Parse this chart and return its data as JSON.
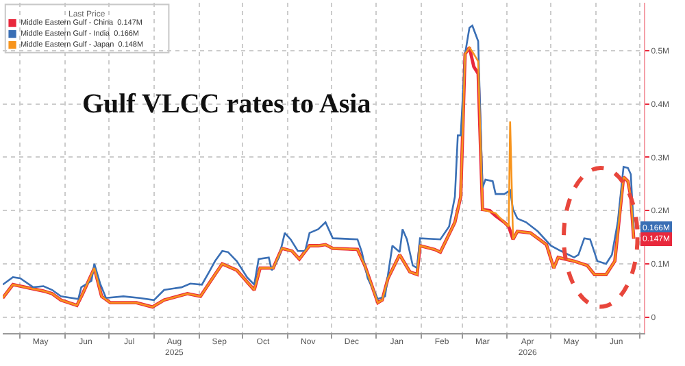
{
  "chart_data": {
    "type": "line",
    "title": "Gulf VLCC rates to Asia",
    "legend_title": "Last Price",
    "legend": "top left",
    "grid": true,
    "marker": "none",
    "line_style": "solid",
    "xlim": [
      "2025-04-19",
      "2026-07-04"
    ],
    "xticks": [
      {
        "value": "2025-05-01",
        "label": null
      },
      {
        "value": "2025-05-15",
        "label": "May"
      },
      {
        "value": "2025-06-01",
        "label": null
      },
      {
        "value": "2025-06-15",
        "label": "Jun"
      },
      {
        "value": "2025-07-01",
        "label": null
      },
      {
        "value": "2025-07-15",
        "label": "Jul"
      },
      {
        "value": "2025-08-01",
        "label": null
      },
      {
        "value": "2025-08-15",
        "label": "Aug\n2025"
      },
      {
        "value": "2025-09-01",
        "label": null
      },
      {
        "value": "2025-09-15",
        "label": "Sep"
      },
      {
        "value": "2025-10-01",
        "label": null
      },
      {
        "value": "2025-10-15",
        "label": "Oct"
      },
      {
        "value": "2025-11-01",
        "label": null
      },
      {
        "value": "2025-11-15",
        "label": "Nov"
      },
      {
        "value": "2025-12-01",
        "label": null
      },
      {
        "value": "2025-12-15",
        "label": "Dec"
      },
      {
        "value": "2026-01-01",
        "label": null
      },
      {
        "value": "2026-01-15",
        "label": "Jan"
      },
      {
        "value": "2026-02-01",
        "label": null
      },
      {
        "value": "2026-02-15",
        "label": "Feb"
      },
      {
        "value": "2026-03-01",
        "label": null
      },
      {
        "value": "2026-03-15",
        "label": "Mar"
      },
      {
        "value": "2026-04-01",
        "label": null
      },
      {
        "value": "2026-04-15",
        "label": "Apr\n2026"
      },
      {
        "value": "2026-05-01",
        "label": null
      },
      {
        "value": "2026-05-15",
        "label": "May"
      },
      {
        "value": "2026-06-01",
        "label": null
      },
      {
        "value": "2026-06-15",
        "label": "Jun"
      },
      {
        "value": "2026-07-01",
        "label": null
      }
    ],
    "ylim": [
      -0.03,
      0.59
    ],
    "yticks": [
      {
        "value": 0,
        "label": "0"
      },
      {
        "value": 0.1,
        "label": "0.1M"
      },
      {
        "value": 0.2,
        "label": "0.2M"
      },
      {
        "value": 0.3,
        "label": "0.3M"
      },
      {
        "value": 0.4,
        "label": "0.4M"
      },
      {
        "value": 0.5,
        "label": "0.5M"
      }
    ],
    "annotations": [
      {
        "text": "0.166M",
        "x": "2026-06-27",
        "y": 0.166
      },
      {
        "text": "0.147M",
        "x": "2026-06-27",
        "y": 0.147
      }
    ],
    "series": [
      {
        "name": "Middle Eastern Gulf - China  0.147M",
        "color": "#e8283c",
        "x": [
          "2025-04-19",
          "2025-04-26",
          "2025-05-08",
          "2025-05-17",
          "2025-05-23",
          "2025-05-29",
          "2025-06-09",
          "2025-06-13",
          "2025-06-21",
          "2025-06-26",
          "2025-07-02",
          "2025-07-20",
          "2025-07-31",
          "2025-08-08",
          "2025-08-24",
          "2025-09-02",
          "2025-09-12",
          "2025-09-17",
          "2025-09-27",
          "2025-10-05",
          "2025-10-09",
          "2025-10-13",
          "2025-10-22",
          "2025-10-28",
          "2025-11-04",
          "2025-11-09",
          "2025-11-16",
          "2025-11-22",
          "2025-11-27",
          "2025-12-02",
          "2025-12-19",
          "2025-12-24",
          "2026-01-02",
          "2026-01-05",
          "2026-01-09",
          "2026-01-17",
          "2026-01-24",
          "2026-01-29",
          "2026-01-31",
          "2026-02-10",
          "2026-02-14",
          "2026-02-24",
          "2026-02-28",
          "2026-03-03",
          "2026-03-06",
          "2026-03-09",
          "2026-03-12",
          "2026-03-15",
          "2026-03-20",
          "2026-03-24",
          "2026-03-30",
          "2026-04-02",
          "2026-04-05",
          "2026-04-08",
          "2026-04-17",
          "2026-04-28",
          "2026-05-03",
          "2026-05-06",
          "2026-05-17",
          "2026-05-26",
          "2026-05-31",
          "2026-06-08",
          "2026-06-14",
          "2026-06-20",
          "2026-06-23",
          "2026-06-25",
          "2026-06-27"
        ],
        "values": [
          0.036,
          0.061,
          0.054,
          0.049,
          0.044,
          0.032,
          0.022,
          0.044,
          0.092,
          0.039,
          0.027,
          0.027,
          0.019,
          0.032,
          0.044,
          0.039,
          0.08,
          0.1,
          0.088,
          0.063,
          0.051,
          0.092,
          0.092,
          0.129,
          0.124,
          0.109,
          0.134,
          0.134,
          0.136,
          0.129,
          0.127,
          0.097,
          0.027,
          0.032,
          0.073,
          0.117,
          0.085,
          0.08,
          0.134,
          0.127,
          0.122,
          0.178,
          0.226,
          0.494,
          0.506,
          0.47,
          0.457,
          0.202,
          0.2,
          0.19,
          0.178,
          0.17,
          0.146,
          0.161,
          0.158,
          0.136,
          0.092,
          0.112,
          0.105,
          0.097,
          0.08,
          0.08,
          0.105,
          0.263,
          0.255,
          0.226,
          0.147
        ]
      },
      {
        "name": "Middle Eastern Gulf - India  0.166M",
        "color": "#3a6fb5",
        "x": [
          "2025-04-19",
          "2025-04-26",
          "2025-05-01",
          "2025-05-10",
          "2025-05-17",
          "2025-05-23",
          "2025-05-29",
          "2025-06-10",
          "2025-06-12",
          "2025-06-19",
          "2025-06-21",
          "2025-06-25",
          "2025-06-29",
          "2025-07-11",
          "2025-07-22",
          "2025-08-01",
          "2025-08-08",
          "2025-08-20",
          "2025-08-26",
          "2025-09-03",
          "2025-09-08",
          "2025-09-12",
          "2025-09-17",
          "2025-09-21",
          "2025-09-27",
          "2025-10-04",
          "2025-10-09",
          "2025-10-12",
          "2025-10-19",
          "2025-10-21",
          "2025-10-26",
          "2025-10-30",
          "2025-11-03",
          "2025-11-08",
          "2025-11-13",
          "2025-11-16",
          "2025-11-22",
          "2025-11-27",
          "2025-12-02",
          "2025-12-19",
          "2025-12-22",
          "2025-12-26",
          "2026-01-02",
          "2026-01-07",
          "2026-01-09",
          "2026-01-12",
          "2026-01-17",
          "2026-01-19",
          "2026-01-22",
          "2026-01-26",
          "2026-01-29",
          "2026-01-31",
          "2026-02-14",
          "2026-02-20",
          "2026-02-24",
          "2026-02-26",
          "2026-02-28",
          "2026-03-03",
          "2026-03-06",
          "2026-03-08",
          "2026-03-12",
          "2026-03-15",
          "2026-03-17",
          "2026-03-22",
          "2026-03-24",
          "2026-03-30",
          "2026-04-03",
          "2026-04-05",
          "2026-04-08",
          "2026-04-14",
          "2026-04-22",
          "2026-05-01",
          "2026-05-08",
          "2026-05-17",
          "2026-05-20",
          "2026-05-24",
          "2026-05-28",
          "2026-06-02",
          "2026-06-08",
          "2026-06-12",
          "2026-06-16",
          "2026-06-20",
          "2026-06-23",
          "2026-06-25",
          "2026-06-27"
        ],
        "values": [
          0.061,
          0.075,
          0.073,
          0.056,
          0.058,
          0.051,
          0.039,
          0.034,
          0.056,
          0.068,
          0.1,
          0.063,
          0.036,
          0.039,
          0.036,
          0.032,
          0.051,
          0.056,
          0.063,
          0.061,
          0.085,
          0.105,
          0.124,
          0.122,
          0.105,
          0.075,
          0.061,
          0.109,
          0.112,
          0.088,
          0.112,
          0.158,
          0.146,
          0.124,
          0.124,
          0.158,
          0.165,
          0.178,
          0.148,
          0.146,
          0.122,
          0.073,
          0.034,
          0.039,
          0.08,
          0.134,
          0.122,
          0.165,
          0.146,
          0.097,
          0.092,
          0.148,
          0.146,
          0.17,
          0.226,
          0.341,
          0.341,
          0.494,
          0.543,
          0.547,
          0.518,
          0.243,
          0.258,
          0.255,
          0.231,
          0.231,
          0.238,
          0.202,
          0.185,
          0.178,
          0.161,
          0.134,
          0.124,
          0.112,
          0.117,
          0.148,
          0.146,
          0.105,
          0.1,
          0.117,
          0.178,
          0.282,
          0.28,
          0.268,
          0.166
        ]
      },
      {
        "name": "Middle Eastern Gulf - Japan  0.148M",
        "color": "#f7941d",
        "x": [
          "2025-04-19",
          "2025-04-26",
          "2025-05-08",
          "2025-05-17",
          "2025-05-23",
          "2025-05-29",
          "2025-06-09",
          "2025-06-13",
          "2025-06-21",
          "2025-06-26",
          "2025-07-02",
          "2025-07-20",
          "2025-07-31",
          "2025-08-08",
          "2025-08-24",
          "2025-09-02",
          "2025-09-12",
          "2025-09-17",
          "2025-09-27",
          "2025-10-05",
          "2025-10-09",
          "2025-10-13",
          "2025-10-22",
          "2025-10-28",
          "2025-11-04",
          "2025-11-09",
          "2025-11-16",
          "2025-11-22",
          "2025-11-27",
          "2025-12-02",
          "2025-12-19",
          "2025-12-24",
          "2026-01-02",
          "2026-01-05",
          "2026-01-09",
          "2026-01-17",
          "2026-01-24",
          "2026-01-29",
          "2026-01-31",
          "2026-02-10",
          "2026-02-14",
          "2026-02-24",
          "2026-02-28",
          "2026-03-03",
          "2026-03-06",
          "2026-03-09",
          "2026-03-12",
          "2026-03-15",
          "2026-03-24",
          "2026-03-30",
          "2026-04-02",
          "2026-04-03",
          "2026-04-05",
          "2026-04-08",
          "2026-04-17",
          "2026-04-28",
          "2026-05-03",
          "2026-05-06",
          "2026-05-17",
          "2026-05-26",
          "2026-05-31",
          "2026-06-08",
          "2026-06-14",
          "2026-06-20",
          "2026-06-23",
          "2026-06-25",
          "2026-06-27"
        ],
        "values": [
          0.036,
          0.061,
          0.054,
          0.049,
          0.044,
          0.032,
          0.022,
          0.044,
          0.092,
          0.039,
          0.027,
          0.027,
          0.019,
          0.032,
          0.044,
          0.039,
          0.08,
          0.1,
          0.088,
          0.063,
          0.051,
          0.092,
          0.092,
          0.129,
          0.124,
          0.109,
          0.134,
          0.134,
          0.136,
          0.129,
          0.127,
          0.097,
          0.027,
          0.032,
          0.073,
          0.117,
          0.085,
          0.08,
          0.134,
          0.127,
          0.122,
          0.178,
          0.226,
          0.494,
          0.506,
          0.494,
          0.48,
          0.202,
          0.195,
          0.178,
          0.17,
          0.367,
          0.146,
          0.161,
          0.158,
          0.136,
          0.092,
          0.112,
          0.105,
          0.097,
          0.08,
          0.08,
          0.105,
          0.263,
          0.255,
          0.226,
          0.148
        ]
      }
    ]
  }
}
